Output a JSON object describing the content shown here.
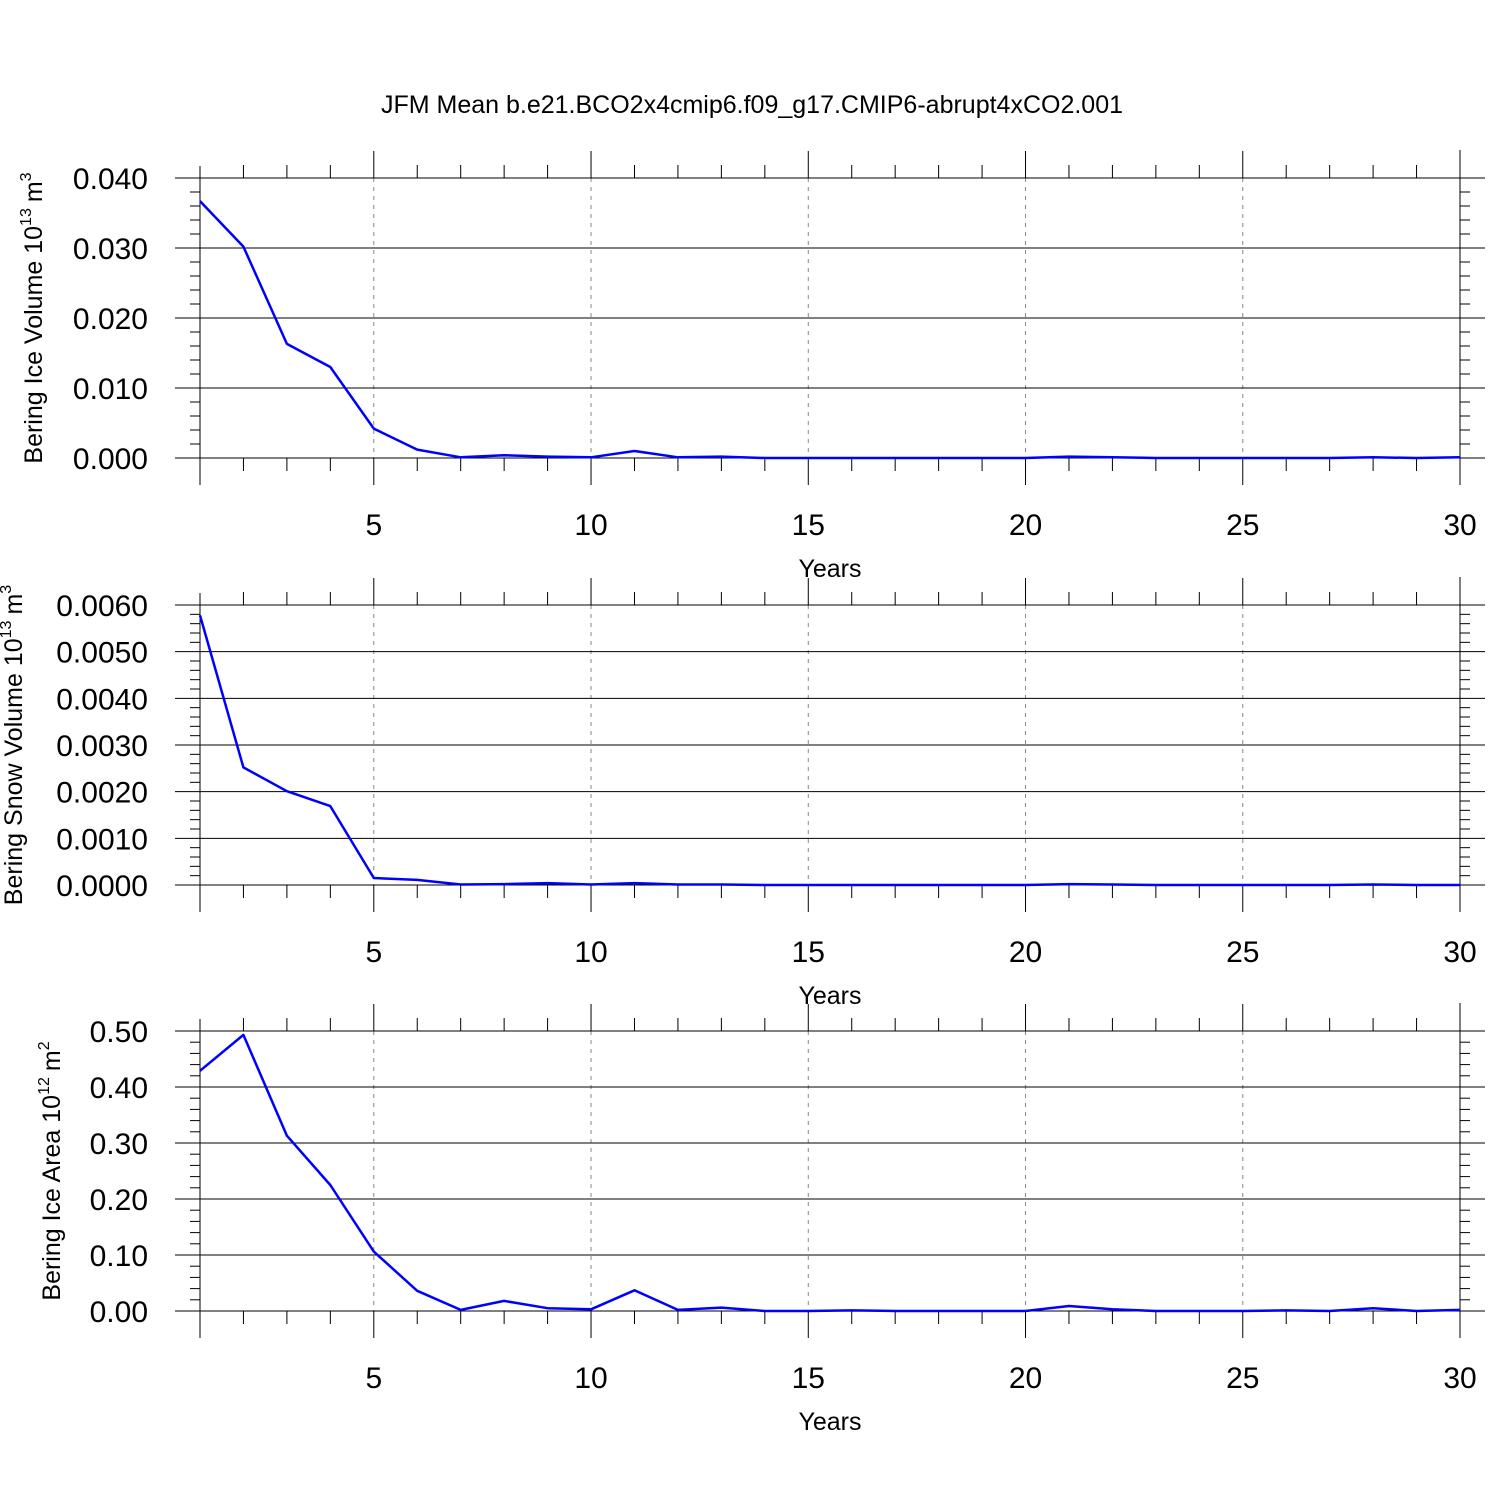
{
  "title": "JFM Mean b.e21.BCO2x4cmip6.f09_g17.CMIP6-abrupt4xCO2.001",
  "line_color": "#0000ff",
  "chart_data": [
    {
      "type": "line",
      "ylabel": "Bering Ice Volume 10",
      "ylabel_exp": "13",
      "ylabel_unit": "m",
      "ylabel_unit_exp": "3",
      "xlabel": "Years",
      "xlim": [
        1,
        30
      ],
      "ylim": [
        0,
        0.04
      ],
      "yticks": [
        0,
        0.01,
        0.02,
        0.03,
        0.04
      ],
      "yticklabels": [
        "0.000",
        "0.010",
        "0.020",
        "0.030",
        "0.040"
      ],
      "xticks": [
        5,
        10,
        15,
        20,
        25,
        30
      ],
      "xticklabels": [
        "5",
        "10",
        "15",
        "20",
        "25",
        "30"
      ],
      "grid": "vertical dashed at major x ticks",
      "x": [
        1,
        2,
        3,
        4,
        5,
        6,
        7,
        8,
        9,
        10,
        11,
        12,
        13,
        14,
        15,
        16,
        17,
        18,
        19,
        20,
        21,
        22,
        23,
        24,
        25,
        26,
        27,
        28,
        29,
        30
      ],
      "y": [
        0.0367,
        0.0302,
        0.0163,
        0.013,
        0.0042,
        0.0012,
        0.0001,
        0.0004,
        0.0002,
        0.0001,
        0.001,
        0.0001,
        0.0002,
        0.0,
        0.0,
        0.0,
        0.0,
        0.0,
        0.0,
        0.0,
        0.0002,
        0.0001,
        0.0,
        0.0,
        0.0,
        0.0,
        0.0,
        0.0001,
        0.0,
        0.0001
      ]
    },
    {
      "type": "line",
      "ylabel": "Bering Snow Volume 10",
      "ylabel_exp": "13",
      "ylabel_unit": "m",
      "ylabel_unit_exp": "3",
      "xlabel": "Years",
      "xlim": [
        1,
        30
      ],
      "ylim": [
        0,
        0.006
      ],
      "yticks": [
        0,
        0.001,
        0.002,
        0.003,
        0.004,
        0.005,
        0.006
      ],
      "yticklabels": [
        "0.0000",
        "0.0010",
        "0.0020",
        "0.0030",
        "0.0040",
        "0.0050",
        "0.0060"
      ],
      "xticks": [
        5,
        10,
        15,
        20,
        25,
        30
      ],
      "xticklabels": [
        "5",
        "10",
        "15",
        "20",
        "25",
        "30"
      ],
      "grid": "vertical dashed at major x ticks",
      "x": [
        1,
        2,
        3,
        4,
        5,
        6,
        7,
        8,
        9,
        10,
        11,
        12,
        13,
        14,
        15,
        16,
        17,
        18,
        19,
        20,
        21,
        22,
        23,
        24,
        25,
        26,
        27,
        28,
        29,
        30
      ],
      "y": [
        0.00578,
        0.00252,
        0.00201,
        0.00169,
        0.00015,
        0.00011,
        1e-05,
        2e-05,
        4e-05,
        1e-05,
        4e-05,
        1e-05,
        1e-05,
        0.0,
        0.0,
        0.0,
        0.0,
        0.0,
        0.0,
        0.0,
        2e-05,
        1e-05,
        0.0,
        0.0,
        0.0,
        0.0,
        0.0,
        1e-05,
        0.0,
        0.0
      ]
    },
    {
      "type": "line",
      "ylabel": "Bering Ice Area 10",
      "ylabel_exp": "12",
      "ylabel_unit": "m",
      "ylabel_unit_exp": "2",
      "xlabel": "Years",
      "xlim": [
        1,
        30
      ],
      "ylim": [
        0,
        0.5
      ],
      "yticks": [
        0,
        0.1,
        0.2,
        0.3,
        0.4,
        0.5
      ],
      "yticklabels": [
        "0.00",
        "0.10",
        "0.20",
        "0.30",
        "0.40",
        "0.50"
      ],
      "xticks": [
        5,
        10,
        15,
        20,
        25,
        30
      ],
      "xticklabels": [
        "5",
        "10",
        "15",
        "20",
        "25",
        "30"
      ],
      "grid": "vertical dashed at major x ticks",
      "x": [
        1,
        2,
        3,
        4,
        5,
        6,
        7,
        8,
        9,
        10,
        11,
        12,
        13,
        14,
        15,
        16,
        17,
        18,
        19,
        20,
        21,
        22,
        23,
        24,
        25,
        26,
        27,
        28,
        29,
        30
      ],
      "y": [
        0.429,
        0.493,
        0.313,
        0.225,
        0.106,
        0.036,
        0.002,
        0.018,
        0.005,
        0.003,
        0.037,
        0.002,
        0.006,
        0.0,
        0.0,
        0.001,
        0.0,
        0.0,
        0.0,
        0.0,
        0.009,
        0.003,
        0.0,
        0.0,
        0.0,
        0.001,
        0.0,
        0.005,
        0.0,
        0.002
      ]
    }
  ]
}
